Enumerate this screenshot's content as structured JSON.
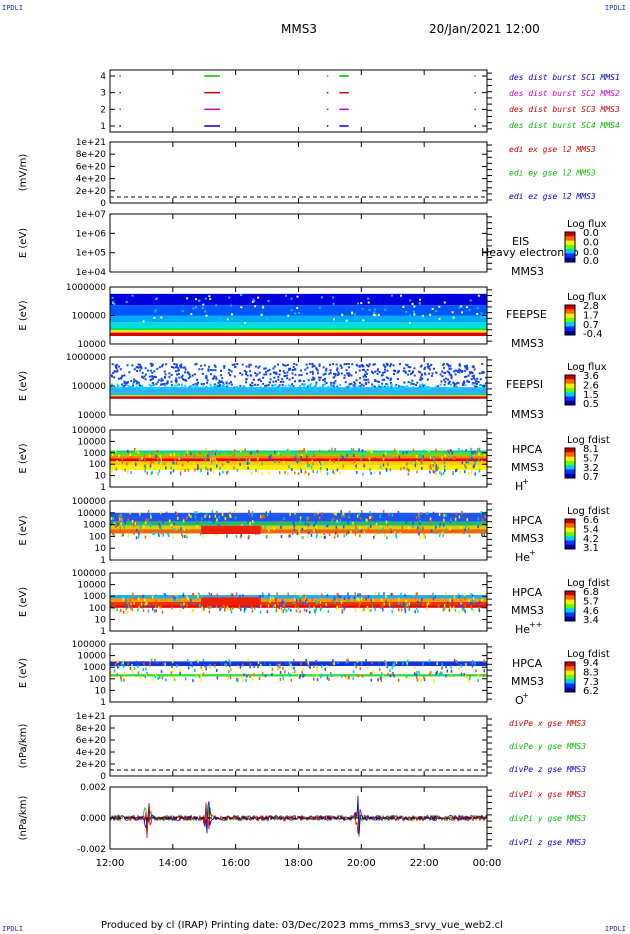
{
  "header": {
    "corner_tl": "IPDLI",
    "corner_tr": "IPDLI",
    "corner_bl": "IPDLI",
    "corner_br": "IPDLI",
    "title": "MMS3",
    "datetime": "20/Jan/2021 12:00"
  },
  "footer": {
    "text": "Produced by cl (IRAP)   Printing date: 03/Dec/2023   mms_mms3_srvy_vue_web2.cl"
  },
  "xaxis": {
    "ticks": [
      "12:00",
      "14:00",
      "16:00",
      "18:00",
      "20:00",
      "22:00",
      "00:00"
    ]
  },
  "panels": [
    {
      "id": "burst",
      "ylabel": "",
      "yticks": [
        "4",
        "3",
        "2",
        "1"
      ],
      "legend": [
        {
          "text": "des dist burst SC1 MMS1",
          "color": "#0000cc"
        },
        {
          "text": "des dist burst SC2 MMS2",
          "color": "#cc00cc"
        },
        {
          "text": "des dist burst SC3 MMS3",
          "color": "#cc0000"
        },
        {
          "text": "des dist burst SC4 MMS4",
          "color": "#00bb00"
        }
      ]
    },
    {
      "id": "edi",
      "ylabel": "(mV/m)",
      "yticks": [
        "1e+21",
        "8e+20",
        "6e+20",
        "4e+20",
        "2e+20",
        "0"
      ],
      "legend": [
        {
          "text": "edi ex gse l2 MMS3",
          "color": "#cc0000"
        },
        {
          "text": "edi ey gse l2 MMS3",
          "color": "#00bb00"
        },
        {
          "text": "edi ez gse l2 MMS3",
          "color": "#0000cc"
        }
      ]
    },
    {
      "id": "eis",
      "ylabel": "E (eV)",
      "yticks": [
        "1e+07",
        "1e+06",
        "1e+05",
        "1e+04"
      ],
      "side": [
        "EIS",
        "MMS3"
      ],
      "side_extra": "Heavy electron to",
      "cbar": {
        "title": "Log flux",
        "values": [
          "0.0",
          "0.0",
          "0.0",
          "0.0"
        ]
      }
    },
    {
      "id": "feepse",
      "ylabel": "E (eV)",
      "yticks": [
        "1000000",
        "100000",
        "10000"
      ],
      "side": [
        "FEEPSE",
        "MMS3"
      ],
      "cbar": {
        "title": "Log flux",
        "values": [
          "2.8",
          "1.7",
          "0.7",
          "-0.4"
        ]
      }
    },
    {
      "id": "feepsi",
      "ylabel": "E (eV)",
      "yticks": [
        "1000000",
        "100000",
        "10000"
      ],
      "side": [
        "FEEPSI",
        "MMS3"
      ],
      "cbar": {
        "title": "Log flux",
        "values": [
          "3.6",
          "2.6",
          "1.5",
          "0.5"
        ]
      }
    },
    {
      "id": "hpca_h",
      "ylabel": "E (eV)",
      "yticks": [
        "100000",
        "10000",
        "1000",
        "100",
        "10",
        "1"
      ],
      "side": [
        "HPCA",
        "MMS3",
        "H+"
      ],
      "cbar": {
        "title": "Log fdist",
        "values": [
          "8.1",
          "5.7",
          "3.2",
          "0.7"
        ]
      }
    },
    {
      "id": "hpca_he",
      "ylabel": "E (eV)",
      "yticks": [
        "100000",
        "10000",
        "1000",
        "100",
        "10",
        "1"
      ],
      "side": [
        "HPCA",
        "MMS3",
        "He+"
      ],
      "cbar": {
        "title": "Log fdist",
        "values": [
          "6.6",
          "5.4",
          "4.2",
          "3.1"
        ]
      }
    },
    {
      "id": "hpca_hepp",
      "ylabel": "E (eV)",
      "yticks": [
        "100000",
        "10000",
        "1000",
        "100",
        "10",
        "1"
      ],
      "side": [
        "HPCA",
        "MMS3",
        "He++"
      ],
      "cbar": {
        "title": "Log fdist",
        "values": [
          "6.8",
          "5.7",
          "4.6",
          "3.4"
        ]
      }
    },
    {
      "id": "hpca_o",
      "ylabel": "E (eV)",
      "yticks": [
        "100000",
        "10000",
        "1000",
        "100",
        "10",
        "1"
      ],
      "side": [
        "HPCA",
        "MMS3",
        "O+"
      ],
      "cbar": {
        "title": "Log fdist",
        "values": [
          "9.4",
          "8.3",
          "7.3",
          "6.2"
        ]
      }
    },
    {
      "id": "divpe",
      "ylabel": "(nPa/km)",
      "yticks": [
        "1e+21",
        "8e+20",
        "6e+20",
        "4e+20",
        "2e+20",
        "0"
      ],
      "legend": [
        {
          "text": "divPe x gse MMS3",
          "color": "#cc0000"
        },
        {
          "text": "divPe y gse MMS3",
          "color": "#00bb00"
        },
        {
          "text": "divPe z gse MMS3",
          "color": "#0000cc"
        }
      ]
    },
    {
      "id": "divpi",
      "ylabel": "(nPa/km)",
      "yticks": [
        "0.002",
        "0.000",
        "-0.002"
      ],
      "legend": [
        {
          "text": "divPi x gse MMS3",
          "color": "#cc0000"
        },
        {
          "text": "divPi y gse MMS3",
          "color": "#00bb00"
        },
        {
          "text": "divPi z gse MMS3",
          "color": "#0000cc"
        }
      ]
    }
  ],
  "chart_data": {
    "type": "heatmap",
    "title": "MMS3",
    "x_range": [
      "12:00",
      "00:00"
    ],
    "xticks": [
      "12:00",
      "14:00",
      "16:00",
      "18:00",
      "20:00",
      "22:00",
      "00:00"
    ],
    "burst_intervals_hours": [
      [
        12.3,
        12.3
      ],
      [
        15.0,
        15.5
      ],
      [
        18.9,
        18.95
      ],
      [
        19.3,
        19.6
      ],
      [
        23.6,
        23.65
      ]
    ],
    "feepse_energy_range_eV": [
      30000,
      1000000
    ],
    "feepsi_energy_range_eV": [
      50000,
      600000
    ],
    "hpca_h_core_eV": [
      100,
      2000
    ],
    "hpca_he_core_eV": [
      200,
      10000
    ],
    "hpca_hepp_core_eV": [
      200,
      2000
    ],
    "hpca_o_core_eV": [
      300,
      2000
    ],
    "divpi_spikes_hours": [
      13.2,
      15.1,
      19.9
    ],
    "divpi_ylim": [
      -0.003,
      0.003
    ]
  }
}
